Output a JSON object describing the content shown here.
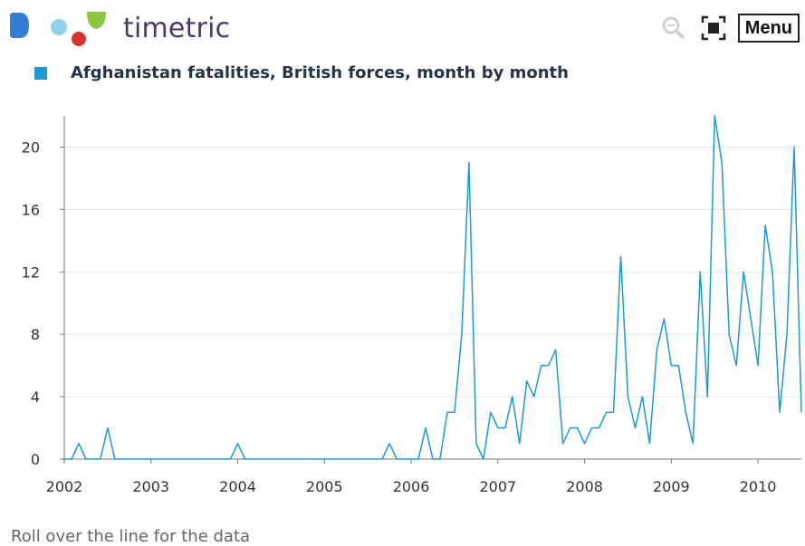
{
  "header": {
    "brand": "timetric",
    "menu_label": "Menu",
    "icons": [
      "zoom-icon",
      "fullscreen-icon"
    ]
  },
  "legend": {
    "label": "Afghanistan fatalities, British forces, month by month",
    "color": "#1b9ad6"
  },
  "footer": {
    "hint": "Roll over the line for the data"
  },
  "chart_data": {
    "type": "line",
    "title": "Afghanistan fatalities, British forces, month by month",
    "xlabel": "",
    "ylabel": "",
    "x_ticks": [
      "2002",
      "2003",
      "2004",
      "2005",
      "2006",
      "2007",
      "2008",
      "2009",
      "2010"
    ],
    "y_ticks": [
      "0",
      "4",
      "8",
      "12",
      "16",
      "20"
    ],
    "xlim": [
      "2002-01",
      "2010-07"
    ],
    "ylim": [
      0,
      22
    ],
    "grid": true,
    "legend_position": "top-left",
    "series": [
      {
        "name": "Afghanistan fatalities, British forces, month by month",
        "color": "#1b9ad6",
        "x": [
          "2002-01",
          "2002-02",
          "2002-03",
          "2002-04",
          "2002-05",
          "2002-06",
          "2002-07",
          "2002-08",
          "2002-09",
          "2002-10",
          "2002-11",
          "2002-12",
          "2003-01",
          "2003-02",
          "2003-03",
          "2003-04",
          "2003-05",
          "2003-06",
          "2003-07",
          "2003-08",
          "2003-09",
          "2003-10",
          "2003-11",
          "2003-12",
          "2004-01",
          "2004-02",
          "2004-03",
          "2004-04",
          "2004-05",
          "2004-06",
          "2004-07",
          "2004-08",
          "2004-09",
          "2004-10",
          "2004-11",
          "2004-12",
          "2005-01",
          "2005-02",
          "2005-03",
          "2005-04",
          "2005-05",
          "2005-06",
          "2005-07",
          "2005-08",
          "2005-09",
          "2005-10",
          "2005-11",
          "2005-12",
          "2006-01",
          "2006-02",
          "2006-03",
          "2006-04",
          "2006-05",
          "2006-06",
          "2006-07",
          "2006-08",
          "2006-09",
          "2006-10",
          "2006-11",
          "2006-12",
          "2007-01",
          "2007-02",
          "2007-03",
          "2007-04",
          "2007-05",
          "2007-06",
          "2007-07",
          "2007-08",
          "2007-09",
          "2007-10",
          "2007-11",
          "2007-12",
          "2008-01",
          "2008-02",
          "2008-03",
          "2008-04",
          "2008-05",
          "2008-06",
          "2008-07",
          "2008-08",
          "2008-09",
          "2008-10",
          "2008-11",
          "2008-12",
          "2009-01",
          "2009-02",
          "2009-03",
          "2009-04",
          "2009-05",
          "2009-06",
          "2009-07",
          "2009-08",
          "2009-09",
          "2009-10",
          "2009-11",
          "2009-12",
          "2010-01",
          "2010-02",
          "2010-03",
          "2010-04",
          "2010-05",
          "2010-06",
          "2010-07"
        ],
        "y": [
          0,
          0,
          1,
          0,
          0,
          0,
          2,
          0,
          0,
          0,
          0,
          0,
          0,
          0,
          0,
          0,
          0,
          0,
          0,
          0,
          0,
          0,
          0,
          0,
          1,
          0,
          0,
          0,
          0,
          0,
          0,
          0,
          0,
          0,
          0,
          0,
          0,
          0,
          0,
          0,
          0,
          0,
          0,
          0,
          0,
          1,
          0,
          0,
          0,
          0,
          2,
          0,
          0,
          3,
          3,
          8,
          19,
          1,
          0,
          3,
          2,
          2,
          4,
          1,
          5,
          4,
          6,
          6,
          7,
          1,
          2,
          2,
          1,
          2,
          2,
          3,
          3,
          13,
          4,
          2,
          4,
          1,
          7,
          9,
          6,
          6,
          3,
          1,
          12,
          4,
          22,
          19,
          8,
          6,
          12,
          9,
          6,
          15,
          12,
          3,
          8,
          20,
          3
        ]
      }
    ]
  }
}
